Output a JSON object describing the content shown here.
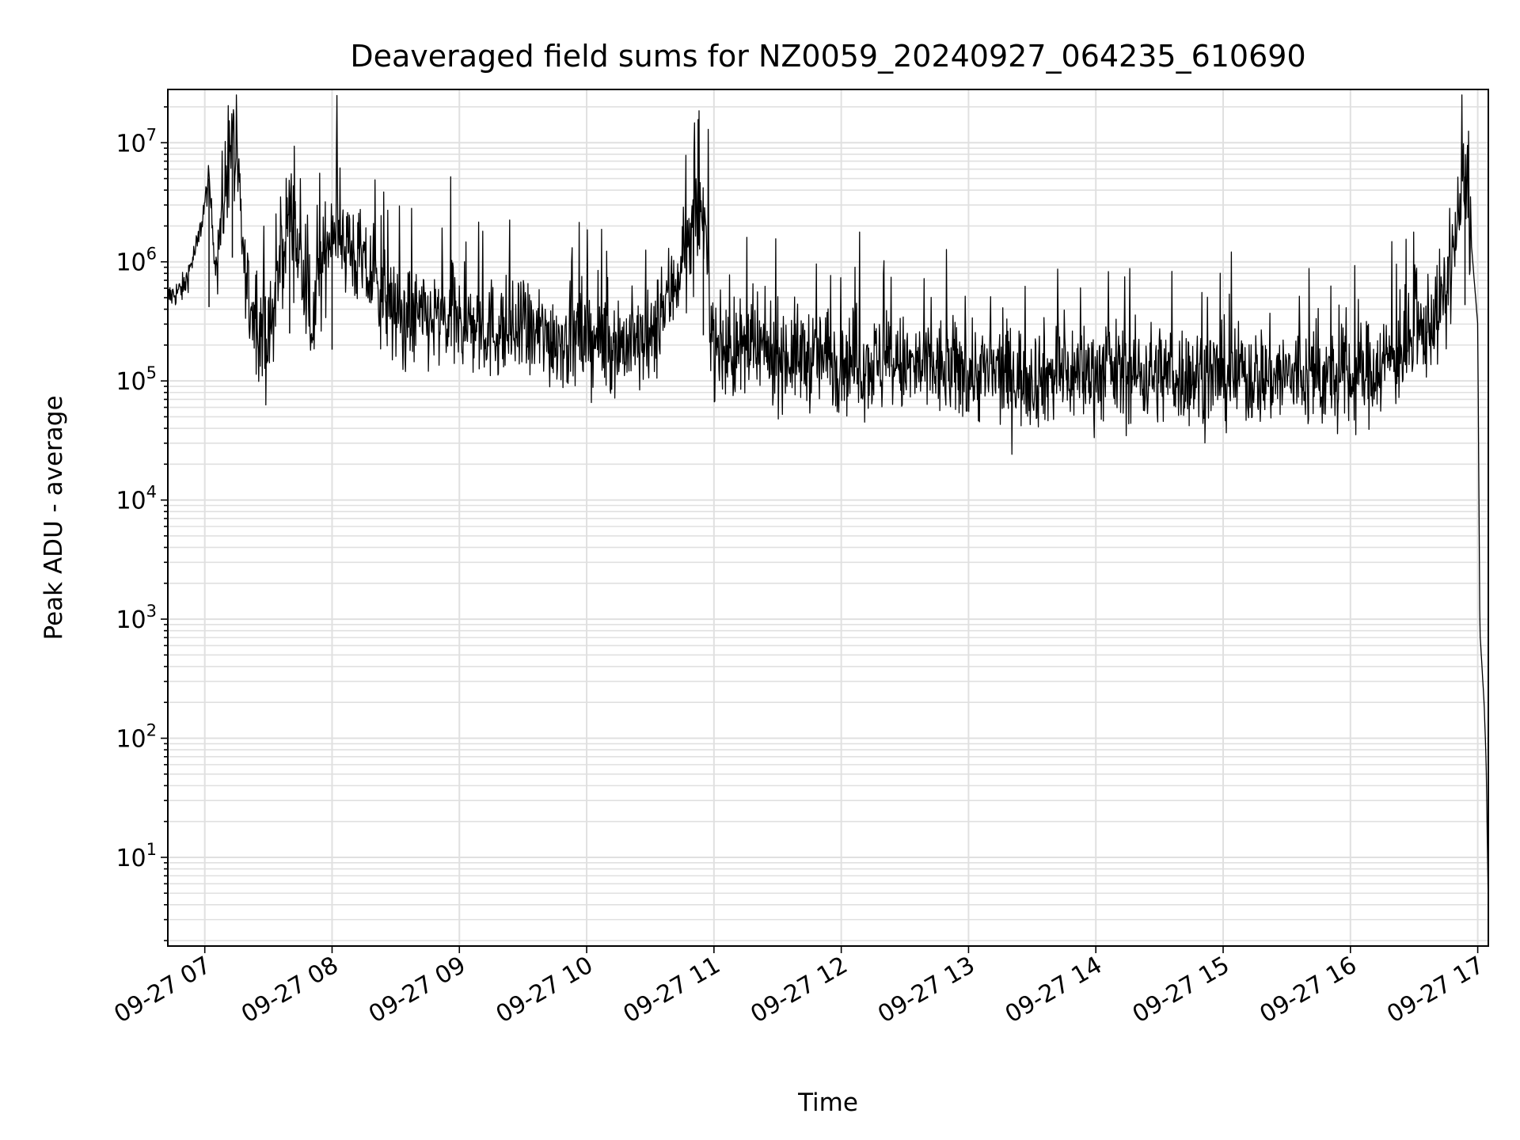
{
  "chart_data": {
    "type": "line",
    "title": "Deaveraged field sums for NZ0059_20240927_064235_610690",
    "xlabel": "Time",
    "ylabel": "Peak ADU - average",
    "yscale": "log",
    "ylim": [
      1.8,
      28000000
    ],
    "xlim": [
      "09-27 06:42:35",
      "09-27 17:05"
    ],
    "xticks": [
      "09-27 07",
      "09-27 08",
      "09-27 09",
      "09-27 10",
      "09-27 11",
      "09-27 12",
      "09-27 13",
      "09-27 14",
      "09-27 15",
      "09-27 16",
      "09-27 17"
    ],
    "yticks": [
      {
        "base": "10",
        "exp": "1"
      },
      {
        "base": "10",
        "exp": "2"
      },
      {
        "base": "10",
        "exp": "3"
      },
      {
        "base": "10",
        "exp": "4"
      },
      {
        "base": "10",
        "exp": "5"
      },
      {
        "base": "10",
        "exp": "6"
      },
      {
        "base": "10",
        "exp": "7"
      }
    ],
    "grid": true,
    "line_color": "#000000",
    "grid_color": "#e0e0e0",
    "series": [
      {
        "points": [
          [
            "09-27 06:42:35",
            500000
          ],
          [
            "09-27 06:50",
            600000
          ],
          [
            "09-27 06:57",
            1500000
          ],
          [
            "09-27 07:02",
            5000000
          ],
          [
            "09-27 07:05",
            900000
          ],
          [
            "09-27 07:13",
            13000000
          ],
          [
            "09-27 07:20",
            500000
          ],
          [
            "09-27 07:30",
            200000
          ],
          [
            "09-27 07:40",
            3000000
          ],
          [
            "09-27 07:50",
            300000
          ],
          [
            "09-27 08:00",
            2200000
          ],
          [
            "09-27 08:30",
            350000
          ],
          [
            "09-27 09:00",
            300000
          ],
          [
            "09-27 09:30",
            250000
          ],
          [
            "09-27 10:00",
            220000
          ],
          [
            "09-27 10:30",
            200000
          ],
          [
            "09-27 10:55",
            2900000
          ],
          [
            "09-27 11:00",
            180000
          ],
          [
            "09-27 11:30",
            170000
          ],
          [
            "09-27 12:00",
            150000
          ],
          [
            "09-27 12:30",
            130000
          ],
          [
            "09-27 13:00",
            120000
          ],
          [
            "09-27 13:30",
            110000
          ],
          [
            "09-27 14:00",
            120000
          ],
          [
            "09-27 14:30",
            115000
          ],
          [
            "09-27 15:00",
            110000
          ],
          [
            "09-27 15:30",
            110000
          ],
          [
            "09-27 16:00",
            100000
          ],
          [
            "09-27 16:30",
            200000
          ],
          [
            "09-27 16:45",
            500000
          ],
          [
            "09-27 16:54",
            5200000
          ],
          [
            "09-27 16:57",
            1400000
          ],
          [
            "09-27 17:00",
            300000
          ],
          [
            "09-27 17:01",
            800
          ],
          [
            "09-27 17:03",
            200
          ],
          [
            "09-27 17:04",
            60
          ],
          [
            "09-27 17:05",
            3.5
          ]
        ]
      }
    ]
  }
}
